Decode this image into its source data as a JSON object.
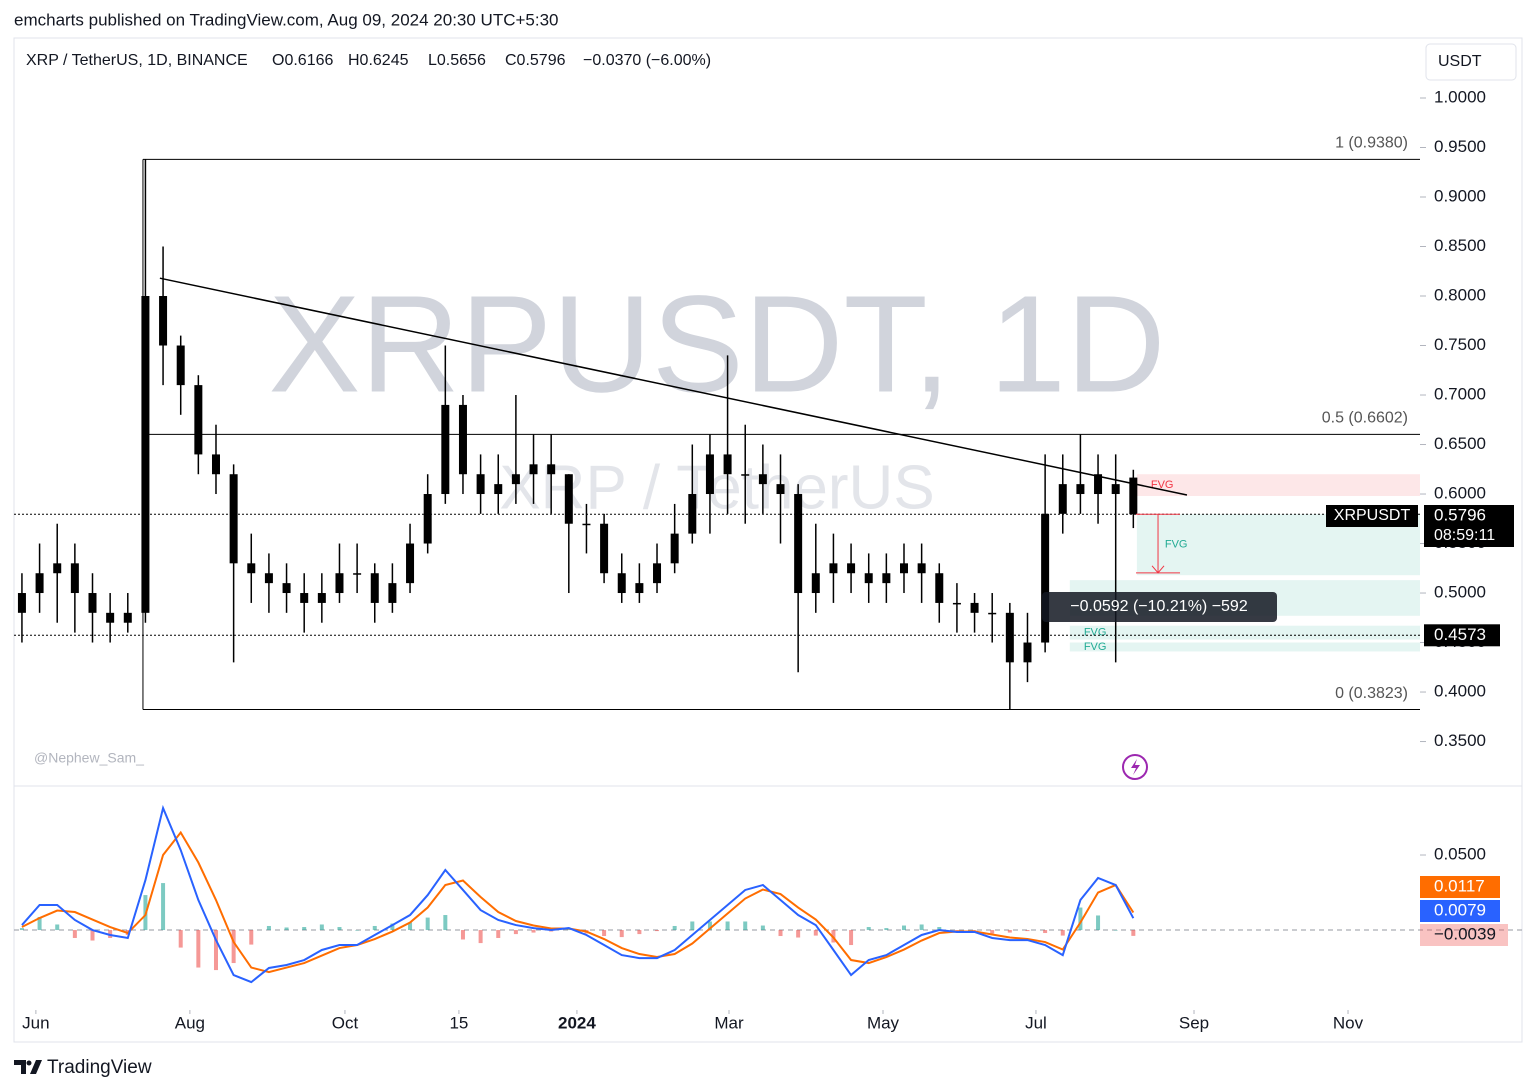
{
  "header": "emcharts published on TradingView.com, Aug 09, 2024 20:30 UTC+5:30",
  "footer": "TradingView",
  "chart_data": [
    {
      "type": "candlestick",
      "title": "XRP / TetherUS, 1D, BINANCE",
      "ohlc_labels": [
        "O0.6166",
        "H0.6245",
        "L0.5656",
        "C0.5796"
      ],
      "change_label": "−0.0370 (−6.00%)",
      "currency": "USDT",
      "watermark": "XRPUSDT, 1D",
      "watermark_sub": "XRP / TetherUS",
      "credit": "@Nephew_Sam_",
      "symbol_tag": "XRPUSDT",
      "countdown": "08:59:11",
      "color": "#000000",
      "open": [
        0.48,
        0.5,
        0.52,
        0.53,
        0.5,
        0.48,
        0.47,
        0.48,
        0.8,
        0.75,
        0.71,
        0.64,
        0.62,
        0.53,
        0.52,
        0.51,
        0.5,
        0.49,
        0.5,
        0.52,
        0.52,
        0.49,
        0.51,
        0.55,
        0.6,
        0.69,
        0.62,
        0.6,
        0.61,
        0.62,
        0.63,
        0.62,
        0.57,
        0.57,
        0.52,
        0.5,
        0.51,
        0.53,
        0.56,
        0.6,
        0.64,
        0.62,
        0.62,
        0.61,
        0.6,
        0.5,
        0.52,
        0.53,
        0.52,
        0.51,
        0.52,
        0.53,
        0.52,
        0.49,
        0.49,
        0.48,
        0.48,
        0.43,
        0.45,
        0.58,
        0.61,
        0.6,
        0.6,
        0.6166
      ],
      "high": [
        0.52,
        0.55,
        0.57,
        0.55,
        0.52,
        0.5,
        0.5,
        0.938,
        0.85,
        0.76,
        0.72,
        0.67,
        0.63,
        0.56,
        0.54,
        0.53,
        0.52,
        0.52,
        0.55,
        0.55,
        0.53,
        0.53,
        0.57,
        0.62,
        0.75,
        0.7,
        0.64,
        0.64,
        0.7,
        0.66,
        0.66,
        0.62,
        0.59,
        0.58,
        0.54,
        0.53,
        0.55,
        0.59,
        0.65,
        0.66,
        0.74,
        0.67,
        0.65,
        0.64,
        0.61,
        0.57,
        0.56,
        0.55,
        0.54,
        0.54,
        0.55,
        0.55,
        0.53,
        0.51,
        0.5,
        0.5,
        0.49,
        0.48,
        0.64,
        0.64,
        0.66,
        0.64,
        0.64,
        0.6245
      ],
      "low": [
        0.45,
        0.48,
        0.47,
        0.46,
        0.45,
        0.45,
        0.46,
        0.47,
        0.71,
        0.68,
        0.62,
        0.6,
        0.43,
        0.49,
        0.48,
        0.48,
        0.46,
        0.47,
        0.49,
        0.5,
        0.47,
        0.48,
        0.5,
        0.54,
        0.59,
        0.6,
        0.58,
        0.58,
        0.59,
        0.59,
        0.58,
        0.5,
        0.54,
        0.51,
        0.49,
        0.49,
        0.5,
        0.52,
        0.55,
        0.56,
        0.58,
        0.57,
        0.58,
        0.55,
        0.42,
        0.48,
        0.49,
        0.5,
        0.49,
        0.49,
        0.5,
        0.49,
        0.47,
        0.46,
        0.46,
        0.45,
        0.3823,
        0.41,
        0.44,
        0.56,
        0.58,
        0.57,
        0.43,
        0.5656
      ],
      "close": [
        0.5,
        0.52,
        0.53,
        0.5,
        0.48,
        0.47,
        0.48,
        0.8,
        0.75,
        0.71,
        0.64,
        0.62,
        0.53,
        0.52,
        0.51,
        0.5,
        0.49,
        0.5,
        0.52,
        0.52,
        0.49,
        0.51,
        0.55,
        0.6,
        0.69,
        0.62,
        0.6,
        0.61,
        0.62,
        0.63,
        0.62,
        0.57,
        0.57,
        0.52,
        0.5,
        0.51,
        0.53,
        0.56,
        0.6,
        0.64,
        0.62,
        0.62,
        0.61,
        0.6,
        0.5,
        0.52,
        0.53,
        0.52,
        0.51,
        0.52,
        0.53,
        0.52,
        0.49,
        0.49,
        0.48,
        0.48,
        0.43,
        0.45,
        0.58,
        0.61,
        0.6,
        0.62,
        0.61,
        0.5796
      ],
      "xlim": [
        -0.45,
        79.25
      ],
      "xticks": [
        {
          "value": 0.79,
          "label": "Jun"
        },
        {
          "value": 9.52,
          "label": "Aug"
        },
        {
          "value": 18.31,
          "label": "Oct"
        },
        {
          "value": 24.77,
          "label": "15"
        },
        {
          "value": 31.46,
          "label": "2024"
        },
        {
          "value": 40.08,
          "label": "Mar"
        },
        {
          "value": 48.81,
          "label": "May"
        },
        {
          "value": 57.48,
          "label": "Jul"
        },
        {
          "value": 66.44,
          "label": "Sep"
        },
        {
          "value": 75.17,
          "label": "Nov"
        }
      ],
      "ylim": [
        0.3061,
        1.0606
      ],
      "yticks": [
        {
          "value": 1,
          "label": "1.0000"
        },
        {
          "value": 0.95,
          "label": "0.9500"
        },
        {
          "value": 0.9,
          "label": "0.9000"
        },
        {
          "value": 0.85,
          "label": "0.8500"
        },
        {
          "value": 0.8,
          "label": "0.8000"
        },
        {
          "value": 0.75,
          "label": "0.7500"
        },
        {
          "value": 0.7,
          "label": "0.7000"
        },
        {
          "value": 0.65,
          "label": "0.6500"
        },
        {
          "value": 0.6,
          "label": "0.6000"
        },
        {
          "value": 0.55,
          "label": "0.5500"
        },
        {
          "value": 0.5,
          "label": "0.5000"
        },
        {
          "value": 0.45,
          "label": "0.4500"
        },
        {
          "value": 0.4,
          "label": "0.4000"
        },
        {
          "value": 0.35,
          "label": "0.3500"
        }
      ],
      "hline": 0.4573,
      "fib": {
        "x0": 6.86,
        "levels": [
          {
            "value": 0.938,
            "label": "1 (0.9380)"
          },
          {
            "value": 0.6602,
            "label": "0.5 (0.6602)"
          },
          {
            "value": 0.3823,
            "label": "0 (0.3823)"
          }
        ]
      },
      "trendline": {
        "x": [
          7.82,
          66.04
        ],
        "y": [
          0.818,
          0.599
        ]
      },
      "zones": [
        {
          "top": 0.62,
          "bottom": 0.598,
          "x0": 63.2,
          "color": "#f23645",
          "label": "FVG"
        },
        {
          "top": 0.5796,
          "bottom": 0.518,
          "x0": 63.2,
          "color": "#22ab94",
          "label": "FVG"
        },
        {
          "top": 0.513,
          "bottom": 0.477,
          "x0": 59.4,
          "color": "#22ab94"
        },
        {
          "top": 0.467,
          "bottom": 0.453,
          "x0": 59.4,
          "color": "#22ab94",
          "label": "FVG"
        },
        {
          "top": 0.45,
          "bottom": 0.441,
          "x0": 59.4,
          "color": "#22ab94",
          "label": "FVG"
        }
      ],
      "measure": {
        "x": 64.4,
        "from": 0.5796,
        "to": 0.5204,
        "label": "−0.0592 (−10.21%) −592"
      }
    },
    {
      "type": "macd",
      "xlim": [
        -0.45,
        79.25
      ],
      "ylim": [
        -0.0533,
        0.096
      ],
      "yticks": [
        {
          "value": 0.05,
          "label": "0.0500"
        }
      ],
      "series": [
        {
          "color": "#ff6d00",
          "values": [
            0.002,
            0.008,
            0.013,
            0.012,
            0.007,
            0.002,
            -0.002,
            0.01,
            0.05,
            0.065,
            0.045,
            0.02,
            -0.008,
            -0.025,
            -0.028,
            -0.025,
            -0.022,
            -0.017,
            -0.012,
            -0.01,
            -0.006,
            -0.001,
            0.005,
            0.015,
            0.03,
            0.033,
            0.022,
            0.012,
            0.006,
            0.003,
            0.001,
            0.001,
            -0.001,
            -0.006,
            -0.012,
            -0.016,
            -0.018,
            -0.016,
            -0.009,
            0.001,
            0.011,
            0.021,
            0.027,
            0.024,
            0.015,
            0.007,
            -0.005,
            -0.02,
            -0.022,
            -0.018,
            -0.013,
            -0.007,
            -0.002,
            -0.001,
            -0.001,
            -0.003,
            -0.005,
            -0.006,
            -0.008,
            -0.013,
            0.005,
            0.025,
            0.03,
            0.0117
          ]
        },
        {
          "color": "#2962ff",
          "values": [
            0.0033,
            0.0167,
            0.0167,
            0.0067,
            0,
            -0.0033,
            -0.0053,
            0.0333,
            0.0813,
            0.0533,
            0.02,
            -0.0067,
            -0.03,
            -0.0347,
            -0.0253,
            -0.0233,
            -0.02,
            -0.0133,
            -0.01,
            -0.01,
            -0.0033,
            0.0033,
            0.01,
            0.0233,
            0.04,
            0.0267,
            0.0133,
            0.0067,
            0.0033,
            0.0013,
            0,
            0.0013,
            -0.0033,
            -0.01,
            -0.0167,
            -0.0187,
            -0.0187,
            -0.0133,
            -0.0033,
            0.0067,
            0.0167,
            0.0267,
            0.03,
            0.02,
            0.01,
            0.0033,
            -0.0133,
            -0.03,
            -0.02,
            -0.0167,
            -0.01,
            -0.0033,
            0,
            -0.0013,
            -0.0013,
            -0.0053,
            -0.0067,
            -0.0067,
            -0.01,
            -0.0167,
            0.02,
            0.0347,
            0.03,
            0.0079
          ]
        }
      ],
      "histogram": {
        "pos_color": "#26a69a",
        "neg_color": "#ef5350",
        "last_label": "−0.0039",
        "values": [
          0.0013,
          0.0087,
          0.0037,
          -0.0053,
          -0.007,
          -0.0053,
          -0.0033,
          0.0233,
          0.0313,
          -0.0117,
          -0.025,
          -0.0267,
          -0.022,
          -0.0097,
          0.0027,
          0.0017,
          0.002,
          0.0037,
          0.002,
          0,
          0.0027,
          0.0043,
          0.005,
          0.0083,
          0.01,
          -0.0063,
          -0.0087,
          -0.0053,
          -0.0027,
          -0.0017,
          -0.001,
          0.0003,
          -0.0023,
          -0.004,
          -0.0047,
          -0.0027,
          -0.0007,
          0.0027,
          0.0057,
          0.0057,
          0.0057,
          0.0057,
          0.003,
          -0.004,
          -0.005,
          -0.0037,
          -0.0083,
          -0.01,
          0.002,
          0.0013,
          0.003,
          0.0037,
          0.002,
          -0.0003,
          -0.0003,
          -0.0023,
          -0.0017,
          -0.0007,
          -0.002,
          -0.0037,
          0.015,
          0.0097,
          0,
          -0.0039
        ]
      }
    }
  ]
}
